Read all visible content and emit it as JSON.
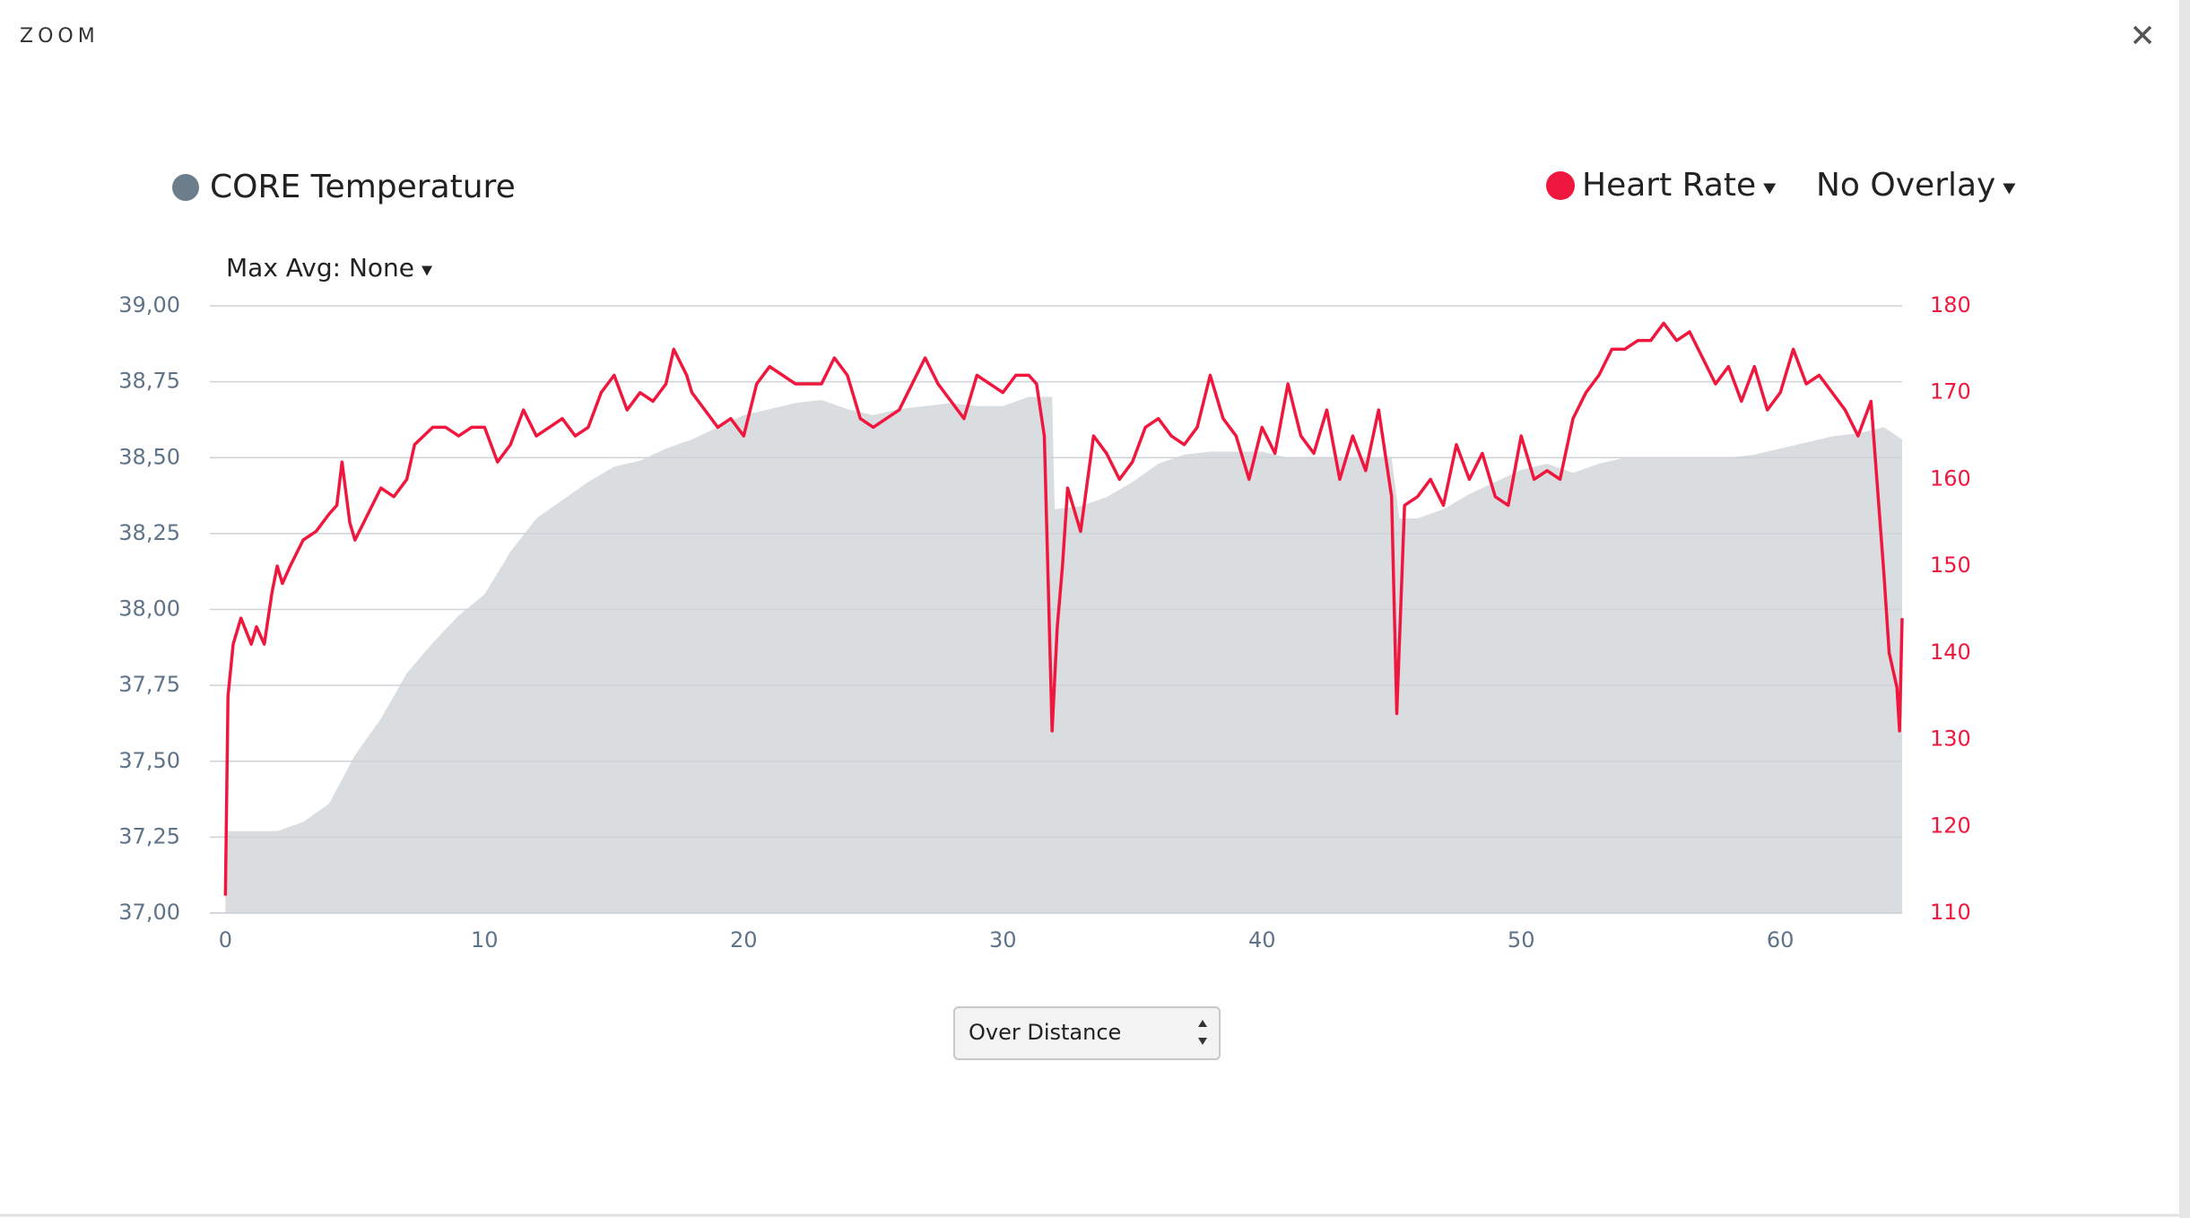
{
  "header": {
    "title": "ZOOM"
  },
  "controls": {
    "max_avg": "Max Avg: None",
    "overlay": "No Overlay",
    "mode": "Over Distance"
  },
  "chart_data": {
    "type": "line",
    "xlim": [
      -0.6,
      64.7
    ],
    "xticks": [
      0,
      10,
      20,
      30,
      40,
      50,
      60
    ],
    "ylim": [
      37,
      39
    ],
    "yticks": [
      {
        "value": 37,
        "label": "37,00"
      },
      {
        "value": 37.25,
        "label": "37,25"
      },
      {
        "value": 37.5,
        "label": "37,50"
      },
      {
        "value": 37.75,
        "label": "37,75"
      },
      {
        "value": 38,
        "label": "38,00"
      },
      {
        "value": 38.25,
        "label": "38,25"
      },
      {
        "value": 38.5,
        "label": "38,50"
      },
      {
        "value": 38.75,
        "label": "38,75"
      },
      {
        "value": 39,
        "label": "39,00"
      }
    ],
    "y2lim": [
      110,
      180
    ],
    "y2ticks": [
      110,
      120,
      130,
      140,
      150,
      160,
      170,
      180
    ],
    "grid": true,
    "series": [
      {
        "name": "CORE Temperature",
        "type": "area",
        "color": "#dadde0",
        "legend_color": "#6c7d8c",
        "x": [
          0,
          1,
          2,
          3,
          4,
          5,
          6,
          7,
          8,
          9,
          10,
          11,
          12,
          13,
          14,
          15,
          16,
          17,
          18,
          19,
          20,
          21,
          22,
          23,
          24,
          25,
          26,
          27,
          28,
          29,
          30,
          31,
          31.9,
          32,
          33,
          34,
          35,
          36,
          37,
          38,
          39,
          40,
          41,
          42,
          43,
          44,
          45,
          45.3,
          46,
          47,
          48,
          49,
          50,
          51,
          52,
          53,
          54,
          55,
          56,
          57,
          58,
          59,
          60,
          61,
          62,
          63,
          64,
          64.7
        ],
        "values": [
          37.27,
          37.27,
          37.27,
          37.3,
          37.36,
          37.52,
          37.64,
          37.79,
          37.89,
          37.98,
          38.05,
          38.19,
          38.3,
          38.36,
          38.42,
          38.47,
          38.49,
          38.53,
          38.56,
          38.6,
          38.64,
          38.66,
          38.68,
          38.69,
          38.66,
          38.64,
          38.66,
          38.67,
          38.68,
          38.67,
          38.67,
          38.7,
          38.7,
          38.33,
          38.34,
          38.37,
          38.42,
          38.48,
          38.51,
          38.52,
          38.52,
          38.52,
          38.5,
          38.5,
          38.5,
          38.5,
          38.5,
          38.3,
          38.3,
          38.33,
          38.38,
          38.42,
          38.46,
          38.48,
          38.45,
          38.48,
          38.5,
          38.5,
          38.5,
          38.5,
          38.5,
          38.51,
          38.53,
          38.55,
          38.57,
          38.58,
          38.6,
          38.56
        ]
      },
      {
        "name": "Heart Rate",
        "type": "line",
        "color": "#f0173f",
        "axis": "y2",
        "x": [
          0,
          0.1,
          0.3,
          0.6,
          1,
          1.2,
          1.5,
          1.8,
          2,
          2.2,
          2.5,
          3,
          3.5,
          4,
          4.3,
          4.5,
          4.8,
          5,
          5.5,
          6,
          6.5,
          7,
          7.3,
          8,
          8.5,
          9,
          9.5,
          10,
          10.5,
          11,
          11.5,
          12,
          12.5,
          13,
          13.5,
          14,
          14.5,
          15,
          15.5,
          16,
          16.5,
          17,
          17.3,
          17.8,
          18,
          18.5,
          19,
          19.5,
          20,
          20.5,
          21,
          21.5,
          22,
          23,
          23.5,
          24,
          24.5,
          25,
          25.5,
          26,
          26.5,
          27,
          27.5,
          28,
          28.5,
          29,
          30,
          30.5,
          31,
          31.3,
          31.6,
          31.9,
          32.1,
          32.3,
          32.5,
          33,
          33.5,
          34,
          34.5,
          35,
          35.5,
          36,
          36.5,
          37,
          37.5,
          38,
          38.5,
          39,
          39.5,
          40,
          40.5,
          41,
          41.5,
          42,
          42.5,
          43,
          43.5,
          44,
          44.5,
          45,
          45.2,
          45.5,
          46,
          46.5,
          47,
          47.5,
          48,
          48.5,
          49,
          49.5,
          50,
          50.5,
          51,
          51.5,
          52,
          52.5,
          53,
          53.5,
          54,
          54.5,
          55,
          55.5,
          56,
          56.5,
          57,
          57.5,
          58,
          58.5,
          59,
          59.5,
          60,
          60.5,
          61,
          61.5,
          62,
          62.5,
          63,
          63.5,
          64,
          64.2,
          64.5,
          64.6,
          64.7
        ],
        "values": [
          112,
          135,
          141,
          144,
          141,
          143,
          141,
          147,
          150,
          148,
          150,
          153,
          154,
          156,
          157,
          162,
          155,
          153,
          156,
          159,
          158,
          160,
          164,
          166,
          166,
          165,
          166,
          166,
          162,
          164,
          168,
          165,
          166,
          167,
          165,
          166,
          170,
          172,
          168,
          170,
          169,
          171,
          175,
          172,
          170,
          168,
          166,
          167,
          165,
          171,
          173,
          172,
          171,
          171,
          174,
          172,
          167,
          166,
          167,
          168,
          171,
          174,
          171,
          169,
          167,
          172,
          170,
          172,
          172,
          171,
          165,
          131,
          143,
          150,
          159,
          154,
          165,
          163,
          160,
          162,
          166,
          167,
          165,
          164,
          166,
          172,
          167,
          165,
          160,
          166,
          163,
          171,
          165,
          163,
          168,
          160,
          165,
          161,
          168,
          158,
          133,
          157,
          158,
          160,
          157,
          164,
          160,
          163,
          158,
          157,
          165,
          160,
          161,
          160,
          167,
          170,
          172,
          175,
          175,
          176,
          176,
          178,
          176,
          177,
          174,
          171,
          173,
          169,
          173,
          168,
          170,
          175,
          171,
          172,
          170,
          168,
          165,
          169,
          149,
          140,
          136,
          131,
          144
        ]
      }
    ]
  }
}
